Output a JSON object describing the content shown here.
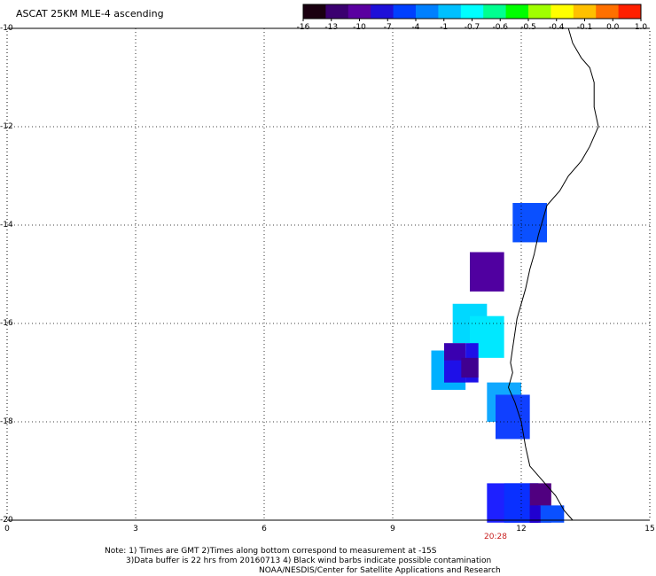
{
  "title": "ASCAT 25KM MLE-4 ascending",
  "colorbar": {
    "colors": [
      "#1a0010",
      "#3b0070",
      "#5a00a0",
      "#1e10d8",
      "#0040ff",
      "#0080ff",
      "#00c0ff",
      "#00ffff",
      "#00ff90",
      "#00ff00",
      "#a0ff00",
      "#ffff00",
      "#ffc000",
      "#ff7000",
      "#ff2000"
    ],
    "tick_labels": [
      "-16",
      "-13",
      "-10",
      "-7",
      "-4",
      "-1",
      "-0.7",
      "-0.6",
      "-0.5",
      "-0.4",
      "-0.1",
      "0.0",
      "1.0"
    ]
  },
  "axes": {
    "xlim": [
      0,
      15
    ],
    "ylim": [
      -20,
      -10
    ],
    "x_ticks": [
      "0",
      "3",
      "6",
      "9",
      "12",
      "15"
    ],
    "x_values": [
      0,
      3,
      6,
      9,
      12,
      15
    ],
    "y_ticks": [
      "-10",
      "-12",
      "-14",
      "-16",
      "-18",
      "-20"
    ],
    "y_values": [
      -10,
      -12,
      -14,
      -16,
      -18,
      -20
    ]
  },
  "time_label": "20:28",
  "time_label_lon": 11.4,
  "notes": {
    "line1": "Note: 1) Times are GMT 2)Times along bottom correspond to measurement at -15S",
    "line2": "3)Data buffer is 22 hrs from 20160713 4) Black wind barbs indicate possible contamination",
    "line3": "NOAA/NESDIS/Center for Satellite Applications and Research"
  },
  "cells": [
    {
      "lon0": 11.8,
      "lon1": 12.6,
      "lat0": -14.35,
      "lat1": -13.55,
      "color": "#0a50ff"
    },
    {
      "lon0": 10.8,
      "lon1": 11.6,
      "lat0": -15.35,
      "lat1": -14.55,
      "color": "#5000a0"
    },
    {
      "lon0": 10.4,
      "lon1": 11.2,
      "lat0": -16.4,
      "lat1": -15.6,
      "color": "#00d8ff"
    },
    {
      "lon0": 10.8,
      "lon1": 11.6,
      "lat0": -16.7,
      "lat1": -15.85,
      "color": "#00e8ff"
    },
    {
      "lon0": 9.9,
      "lon1": 10.7,
      "lat0": -17.35,
      "lat1": -16.55,
      "color": "#00b0ff"
    },
    {
      "lon0": 10.2,
      "lon1": 10.7,
      "lat0": -17.2,
      "lat1": -16.4,
      "color": "#3a00b0"
    },
    {
      "lon0": 10.7,
      "lon1": 11.0,
      "lat0": -17.2,
      "lat1": -16.4,
      "color": "#1e10e8"
    },
    {
      "lon0": 10.2,
      "lon1": 10.7,
      "lat0": -17.2,
      "lat1": -16.75,
      "color": "#1e10e8"
    },
    {
      "lon0": 10.6,
      "lon1": 11.0,
      "lat0": -17.1,
      "lat1": -16.7,
      "color": "#400090"
    },
    {
      "lon0": 11.2,
      "lon1": 12.0,
      "lat0": -18.0,
      "lat1": -17.2,
      "color": "#10a8ff"
    },
    {
      "lon0": 11.4,
      "lon1": 12.2,
      "lat0": -18.35,
      "lat1": -17.45,
      "color": "#1040ff"
    },
    {
      "lon0": 11.2,
      "lon1": 12.4,
      "lat0": -20.05,
      "lat1": -19.25,
      "color": "#1e20ff"
    },
    {
      "lon0": 11.6,
      "lon1": 12.4,
      "lat0": -20.05,
      "lat1": -19.25,
      "color": "#0a30ff"
    },
    {
      "lon0": 12.2,
      "lon1": 12.7,
      "lat0": -19.8,
      "lat1": -19.25,
      "color": "#500080"
    },
    {
      "lon0": 12.2,
      "lon1": 12.7,
      "lat0": -20.05,
      "lat1": -19.8,
      "color": "#3800b0"
    },
    {
      "lon0": 12.4,
      "lon1": 13.0,
      "lat0": -20.05,
      "lat1": -19.7,
      "color": "#0a50ff"
    },
    {
      "lon0": 12.2,
      "lon1": 12.45,
      "lat0": -20.05,
      "lat1": -19.7,
      "color": "#2000d0"
    }
  ],
  "coastline": [
    [
      13.1,
      -10.0
    ],
    [
      13.2,
      -10.3
    ],
    [
      13.4,
      -10.6
    ],
    [
      13.6,
      -10.8
    ],
    [
      13.7,
      -11.1
    ],
    [
      13.7,
      -11.6
    ],
    [
      13.8,
      -12.0
    ],
    [
      13.6,
      -12.4
    ],
    [
      13.4,
      -12.7
    ],
    [
      13.1,
      -13.0
    ],
    [
      12.9,
      -13.3
    ],
    [
      12.6,
      -13.6
    ],
    [
      12.5,
      -13.9
    ],
    [
      12.4,
      -14.2
    ],
    [
      12.3,
      -14.6
    ],
    [
      12.2,
      -14.9
    ],
    [
      12.1,
      -15.3
    ],
    [
      12.0,
      -15.6
    ],
    [
      11.9,
      -15.9
    ],
    [
      11.85,
      -16.2
    ],
    [
      11.8,
      -16.5
    ],
    [
      11.75,
      -16.8
    ],
    [
      11.8,
      -17.0
    ],
    [
      11.7,
      -17.3
    ],
    [
      11.85,
      -17.6
    ],
    [
      12.0,
      -18.0
    ],
    [
      12.1,
      -18.5
    ],
    [
      12.2,
      -18.9
    ],
    [
      12.5,
      -19.2
    ],
    [
      12.8,
      -19.5
    ],
    [
      13.0,
      -19.8
    ],
    [
      13.2,
      -20.0
    ]
  ]
}
